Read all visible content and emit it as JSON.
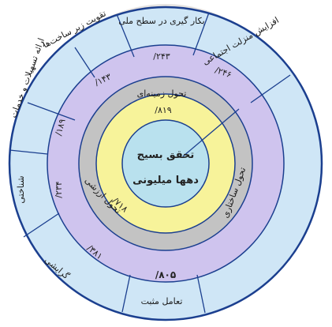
{
  "center": {
    "line1": "تحقق بسیج",
    "line2": "دهها میلیونی"
  },
  "ring_yellow": {
    "value_top": "/۸۱۹",
    "value_left": "/۷۱۸",
    "label_left": "تحول ارزشی"
  },
  "ring_gray": {
    "label_top": "تحول زمینه‌ای",
    "label_right": "تحول ساختاری",
    "value_bottom": "/۸۰۵"
  },
  "ring_lavender": {
    "value_top": "/۲۴۳",
    "value_top_left": "/۱۴۳",
    "value_right": "/۲۴۶",
    "value_left": "/۱۸۹",
    "value_left_lower": "/۲۳۴",
    "value_bottom_left": "/۳۸۱"
  },
  "ring_outer": {
    "seg_top_left": "تقویت زیر ساخت‌ها",
    "seg_top": "بکار گیری در سطح ملی",
    "seg_top_right": "افزایش منزلت اجتماعی",
    "seg_left_upper": "ارائه تسهیلات و خدمات",
    "seg_left": "شناختی",
    "seg_bottom_left": "گرایشی",
    "seg_bottom": "تعامل مثبت"
  },
  "colors": {
    "outer_ring": "#cfe6f6",
    "lavender_ring": "#cfc4ee",
    "gray_ring": "#c3c3c3",
    "yellow_ring": "#f7f39a",
    "center": "#b9e1ee",
    "border": "#1b3f8f"
  }
}
